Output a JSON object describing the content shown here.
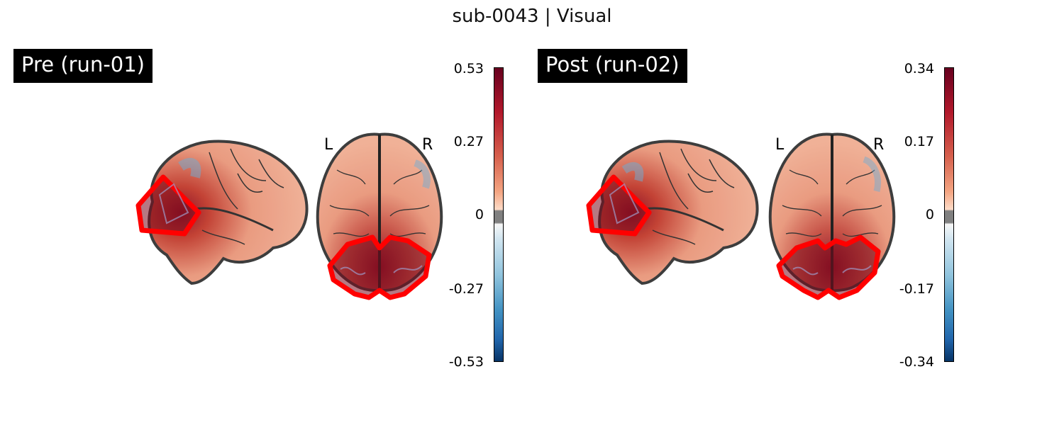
{
  "figure": {
    "title": "sub-0043 | Visual"
  },
  "panels": [
    {
      "label": "Pre (run-01)",
      "orientation_left": "L",
      "orientation_right": "R",
      "colorbar": {
        "max": "0.53",
        "upper": "0.27",
        "zero": "0",
        "lower": "-0.27",
        "min": "-0.53"
      }
    },
    {
      "label": "Post (run-02)",
      "orientation_left": "L",
      "orientation_right": "R",
      "colorbar": {
        "max": "0.34",
        "upper": "0.17",
        "zero": "0",
        "lower": "-0.17",
        "min": "-0.34"
      }
    }
  ],
  "colors": {
    "roi_outline": "#ff0000",
    "brain_outline": "#333333",
    "cmap_high": "#67001f",
    "cmap_low": "#053061"
  }
}
